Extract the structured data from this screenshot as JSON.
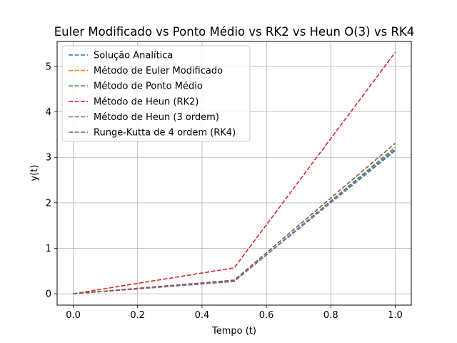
{
  "chart_data": {
    "type": "line",
    "title": "Euler Modificado vs Ponto Médio vs RK2 vs Heun O(3) vs RK4",
    "xlabel": "Tempo (t)",
    "ylabel": "y(t)",
    "xlim": [
      -0.05,
      1.05
    ],
    "ylim": [
      -0.25,
      5.55
    ],
    "xticks": [
      0.0,
      0.2,
      0.4,
      0.6,
      0.8,
      1.0
    ],
    "xtick_labels": [
      "0.0",
      "0.2",
      "0.4",
      "0.6",
      "0.8",
      "1.0"
    ],
    "yticks": [
      0,
      1,
      2,
      3,
      4,
      5
    ],
    "ytick_labels": [
      "0",
      "1",
      "2",
      "3",
      "4",
      "5"
    ],
    "grid": true,
    "legend_position": "top-left",
    "line_style": "dashed",
    "x": [
      0.0,
      0.5,
      1.0
    ],
    "series": [
      {
        "name": "Solução Analítica",
        "color": "#1f77b4",
        "values": [
          0.0,
          0.28,
          3.15
        ]
      },
      {
        "name": "Método de Euler Modificado",
        "color": "#ff7f0e",
        "values": [
          0.0,
          0.27,
          3.22
        ]
      },
      {
        "name": "Método de Ponto Médio",
        "color": "#2ca02c",
        "values": [
          0.0,
          0.27,
          3.22
        ]
      },
      {
        "name": "Método de Heun (RK2)",
        "color": "#d62728",
        "values": [
          0.0,
          0.57,
          5.31
        ]
      },
      {
        "name": "Método de Heun (3 ordem)",
        "color": "#9467bd",
        "values": [
          0.0,
          0.27,
          3.18
        ]
      },
      {
        "name": "Runge-Kutta de 4 ordem (RK4)",
        "color": "#8c564b",
        "values": [
          0.0,
          0.3,
          3.31
        ]
      }
    ]
  }
}
